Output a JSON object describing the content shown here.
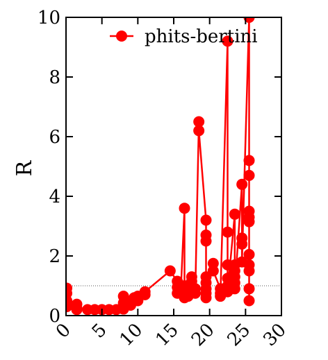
{
  "chart_data": {
    "type": "line",
    "xlabel": "",
    "ylabel": "R",
    "xlim": [
      0,
      30
    ],
    "ylim": [
      0,
      10
    ],
    "xticks": [
      0,
      5,
      10,
      15,
      20,
      25,
      30
    ],
    "yticks": [
      0,
      2,
      4,
      6,
      8,
      10
    ],
    "reference_line": {
      "y": 1,
      "style": "dotted"
    },
    "legend_position": "top-right",
    "colors": {
      "series": "#ff0000",
      "axis": "#000000",
      "reference": "#555555"
    },
    "series": [
      {
        "name": "phits-bertini",
        "points": [
          [
            0.1,
            0.92
          ],
          [
            0.1,
            0.75
          ],
          [
            0.1,
            0.5
          ],
          [
            0.1,
            0.3
          ],
          [
            1.5,
            0.38
          ],
          [
            1.5,
            0.25
          ],
          [
            1.5,
            0.2
          ],
          [
            3,
            0.2
          ],
          [
            4,
            0.2
          ],
          [
            5,
            0.2
          ],
          [
            6,
            0.2
          ],
          [
            7,
            0.2
          ],
          [
            8,
            0.22
          ],
          [
            8,
            0.3
          ],
          [
            8,
            0.42
          ],
          [
            8,
            0.65
          ],
          [
            9,
            0.35
          ],
          [
            9,
            0.45
          ],
          [
            9.5,
            0.6
          ],
          [
            10,
            0.5
          ],
          [
            10,
            0.65
          ],
          [
            11,
            0.7
          ],
          [
            11,
            0.8
          ],
          [
            14.5,
            1.5
          ],
          [
            15.5,
            1.15
          ],
          [
            15.5,
            0.95
          ],
          [
            15.5,
            0.75
          ],
          [
            16,
            0.9
          ],
          [
            16.5,
            3.6
          ],
          [
            16.5,
            1.0
          ],
          [
            16.5,
            0.75
          ],
          [
            16.5,
            0.6
          ],
          [
            17,
            0.8
          ],
          [
            17,
            0.65
          ],
          [
            17.5,
            1.3
          ],
          [
            17.5,
            1.15
          ],
          [
            17.5,
            1.0
          ],
          [
            17.5,
            0.8
          ],
          [
            18,
            0.9
          ],
          [
            18,
            0.75
          ],
          [
            18.5,
            6.5
          ],
          [
            18.5,
            6.2
          ],
          [
            19.5,
            3.2
          ],
          [
            19.5,
            2.7
          ],
          [
            19.5,
            2.5
          ],
          [
            19.5,
            1.3
          ],
          [
            19.5,
            1.1
          ],
          [
            19.5,
            0.9
          ],
          [
            19.5,
            0.75
          ],
          [
            19.5,
            0.6
          ],
          [
            20.5,
            1.75
          ],
          [
            20.5,
            1.5
          ],
          [
            21.5,
            0.9
          ],
          [
            21.5,
            0.75
          ],
          [
            21.5,
            0.65
          ],
          [
            22.5,
            9.2
          ],
          [
            22.5,
            2.8
          ],
          [
            22.5,
            1.7
          ],
          [
            22.5,
            1.25
          ],
          [
            22.5,
            1.0
          ],
          [
            22.5,
            0.8
          ],
          [
            23.5,
            3.4
          ],
          [
            23.5,
            1.7
          ],
          [
            23.5,
            1.5
          ],
          [
            23.5,
            1.3
          ],
          [
            23.5,
            1.1
          ],
          [
            23.5,
            0.9
          ],
          [
            24.5,
            4.4
          ],
          [
            24.5,
            2.6
          ],
          [
            24.5,
            2.4
          ],
          [
            24.5,
            1.8
          ],
          [
            25.5,
            10.0
          ],
          [
            25.5,
            5.2
          ],
          [
            25.5,
            4.7
          ],
          [
            25.5,
            3.5
          ],
          [
            25.5,
            3.3
          ],
          [
            25.5,
            3.15
          ],
          [
            25.5,
            2.05
          ],
          [
            25.5,
            1.7
          ],
          [
            25.5,
            1.5
          ],
          [
            25.5,
            0.9
          ],
          [
            25.5,
            0.5
          ]
        ]
      }
    ]
  }
}
